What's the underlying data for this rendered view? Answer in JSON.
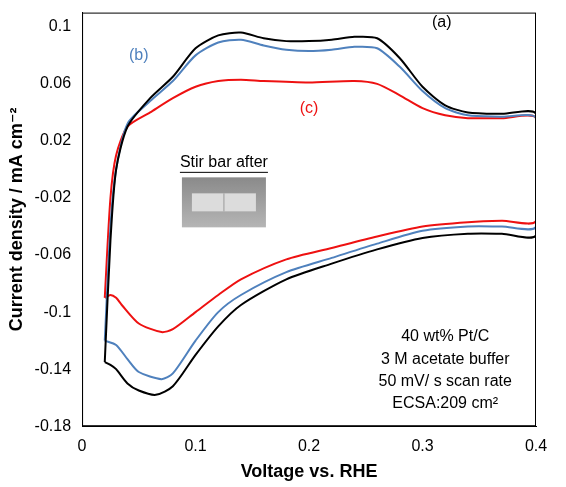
{
  "chart_data": {
    "type": "line",
    "x_label": "Voltage vs. RHE",
    "y_label": "Current density / mA cm⁻²",
    "xlim": [
      0,
      0.4
    ],
    "xticks": [
      0,
      0.1,
      0.2,
      0.3,
      0.4
    ],
    "ylim": [
      -0.18,
      0.11
    ],
    "yticks": [
      -0.18,
      -0.14,
      -0.1,
      -0.06,
      -0.02,
      0.02,
      0.06,
      0.1
    ],
    "grid": false,
    "series": [
      {
        "color": "#000000",
        "x": [
          0.02,
          0.025,
          0.03,
          0.04,
          0.06,
          0.08,
          0.1,
          0.12,
          0.14,
          0.16,
          0.18,
          0.2,
          0.22,
          0.24,
          0.26,
          0.28,
          0.3,
          0.32,
          0.34,
          0.37,
          0.4,
          0.4,
          0.37,
          0.34,
          0.3,
          0.26,
          0.22,
          0.18,
          0.14,
          0.12,
          0.1,
          0.08,
          0.065,
          0.05,
          0.04,
          0.03,
          0.025,
          0.02
        ],
        "values": [
          -0.135,
          -0.05,
          0.0,
          0.03,
          0.05,
          0.065,
          0.085,
          0.094,
          0.096,
          0.092,
          0.09,
          0.09,
          0.091,
          0.093,
          0.092,
          0.078,
          0.058,
          0.045,
          0.04,
          0.039,
          0.039,
          -0.046,
          -0.045,
          -0.045,
          -0.048,
          -0.056,
          -0.066,
          -0.077,
          -0.095,
          -0.11,
          -0.13,
          -0.152,
          -0.158,
          -0.155,
          -0.15,
          -0.14,
          -0.137,
          -0.135
        ]
      },
      {
        "color": "#4f81bd",
        "x": [
          0.02,
          0.025,
          0.03,
          0.04,
          0.06,
          0.08,
          0.1,
          0.12,
          0.14,
          0.16,
          0.18,
          0.2,
          0.22,
          0.24,
          0.26,
          0.28,
          0.3,
          0.32,
          0.34,
          0.37,
          0.4,
          0.4,
          0.37,
          0.34,
          0.3,
          0.26,
          0.22,
          0.18,
          0.14,
          0.12,
          0.1,
          0.08,
          0.07,
          0.05,
          0.04,
          0.03,
          0.02
        ],
        "values": [
          -0.12,
          -0.04,
          0.0,
          0.032,
          0.048,
          0.062,
          0.08,
          0.089,
          0.091,
          0.087,
          0.084,
          0.083,
          0.084,
          0.086,
          0.085,
          0.072,
          0.055,
          0.043,
          0.038,
          0.037,
          0.036,
          -0.04,
          -0.04,
          -0.04,
          -0.043,
          -0.052,
          -0.062,
          -0.072,
          -0.088,
          -0.1,
          -0.12,
          -0.143,
          -0.147,
          -0.142,
          -0.133,
          -0.123,
          -0.12
        ]
      },
      {
        "color": "#ee1111",
        "x": [
          0.02,
          0.025,
          0.03,
          0.04,
          0.06,
          0.08,
          0.1,
          0.12,
          0.14,
          0.16,
          0.2,
          0.24,
          0.26,
          0.28,
          0.3,
          0.32,
          0.34,
          0.37,
          0.4,
          0.4,
          0.37,
          0.34,
          0.3,
          0.26,
          0.22,
          0.18,
          0.14,
          0.12,
          0.1,
          0.08,
          0.07,
          0.05,
          0.035,
          0.03,
          0.025,
          0.02
        ],
        "values": [
          -0.09,
          -0.02,
          0.01,
          0.03,
          0.04,
          0.05,
          0.058,
          0.062,
          0.063,
          0.062,
          0.061,
          0.062,
          0.06,
          0.052,
          0.043,
          0.038,
          0.036,
          0.036,
          0.036,
          -0.036,
          -0.036,
          -0.037,
          -0.04,
          -0.047,
          -0.055,
          -0.063,
          -0.077,
          -0.088,
          -0.1,
          -0.112,
          -0.114,
          -0.108,
          -0.095,
          -0.09,
          -0.088,
          -0.09
        ]
      }
    ],
    "annotations": [
      {
        "text": "(a)",
        "x": 0.317,
        "y": 0.103,
        "color": "#000000"
      },
      {
        "text": "(b)",
        "x": 0.05,
        "y": 0.08,
        "color": "#4f81bd"
      },
      {
        "text": "(c)",
        "x": 0.2,
        "y": 0.043,
        "color": "#ee1111"
      },
      {
        "text": "Stir bar after",
        "x": 0.125,
        "y": 0.005,
        "color": "#000000",
        "line_style": "underline"
      },
      {
        "text": "40 wt% Pt/C",
        "x": 0.32,
        "y": -0.117,
        "color": "#000000"
      },
      {
        "text": "3 M acetate buffer",
        "x": 0.32,
        "y": -0.133,
        "color": "#000000"
      },
      {
        "text": "50 mV/ s scan rate",
        "x": 0.32,
        "y": -0.149,
        "color": "#000000"
      },
      {
        "text": "ECSA:209 cm²",
        "x": 0.32,
        "y": -0.164,
        "color": "#000000"
      }
    ]
  }
}
